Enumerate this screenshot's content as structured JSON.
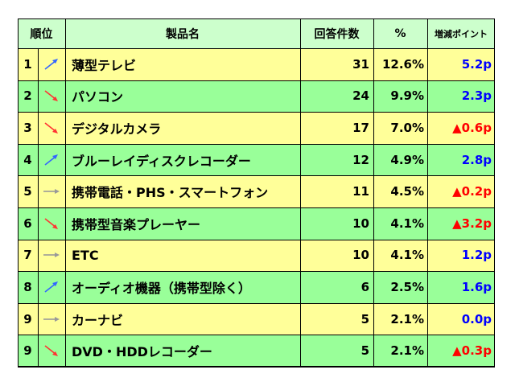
{
  "headers": {
    "rank": "順位",
    "name": "製品名",
    "count": "回答件数",
    "pct": "%",
    "delta": "増減ポイント"
  },
  "colors": {
    "header_bg": "#ccffcc",
    "row_yellow": "#ffff99",
    "row_green": "#99ff99",
    "positive": "#0000ff",
    "negative": "#ff0000",
    "arrow_up": "#3366ff",
    "arrow_down": "#ff3333",
    "arrow_flat": "#999999"
  },
  "rows": [
    {
      "rank": "1",
      "trend": "up",
      "trend_icon": "arrow-up-right-icon",
      "name": "薄型テレビ",
      "count": "31",
      "pct": "12.6%",
      "delta": "5.2p",
      "delta_sign": "positive"
    },
    {
      "rank": "2",
      "trend": "down",
      "trend_icon": "arrow-down-right-icon",
      "name": "パソコン",
      "count": "24",
      "pct": "9.9%",
      "delta": "2.3p",
      "delta_sign": "positive"
    },
    {
      "rank": "3",
      "trend": "down",
      "trend_icon": "arrow-down-right-icon",
      "name": "デジタルカメラ",
      "count": "17",
      "pct": "7.0%",
      "delta": "▲0.6p",
      "delta_sign": "negative"
    },
    {
      "rank": "4",
      "trend": "up",
      "trend_icon": "arrow-up-right-icon",
      "name": "ブルーレイディスクレコーダー",
      "count": "12",
      "pct": "4.9%",
      "delta": "2.8p",
      "delta_sign": "positive"
    },
    {
      "rank": "5",
      "trend": "flat",
      "trend_icon": "arrow-right-icon",
      "name": "携帯電話・PHS・スマートフォン",
      "count": "11",
      "pct": "4.5%",
      "delta": "▲0.2p",
      "delta_sign": "negative"
    },
    {
      "rank": "6",
      "trend": "down",
      "trend_icon": "arrow-down-right-icon",
      "name": "携帯型音楽プレーヤー",
      "count": "10",
      "pct": "4.1%",
      "delta": "▲3.2p",
      "delta_sign": "negative"
    },
    {
      "rank": "7",
      "trend": "flat",
      "trend_icon": "arrow-right-icon",
      "name": "ETC",
      "count": "10",
      "pct": "4.1%",
      "delta": "1.2p",
      "delta_sign": "positive"
    },
    {
      "rank": "8",
      "trend": "up",
      "trend_icon": "arrow-up-right-icon",
      "name": "オーディオ機器（携帯型除く）",
      "count": "6",
      "pct": "2.5%",
      "delta": "1.6p",
      "delta_sign": "positive"
    },
    {
      "rank": "9",
      "trend": "flat",
      "trend_icon": "arrow-right-icon",
      "name": "カーナビ",
      "count": "5",
      "pct": "2.1%",
      "delta": "0.0p",
      "delta_sign": "positive"
    },
    {
      "rank": "9",
      "trend": "down",
      "trend_icon": "arrow-down-right-icon",
      "name": "DVD・HDDレコーダー",
      "count": "5",
      "pct": "2.1%",
      "delta": "▲0.3p",
      "delta_sign": "negative"
    }
  ]
}
